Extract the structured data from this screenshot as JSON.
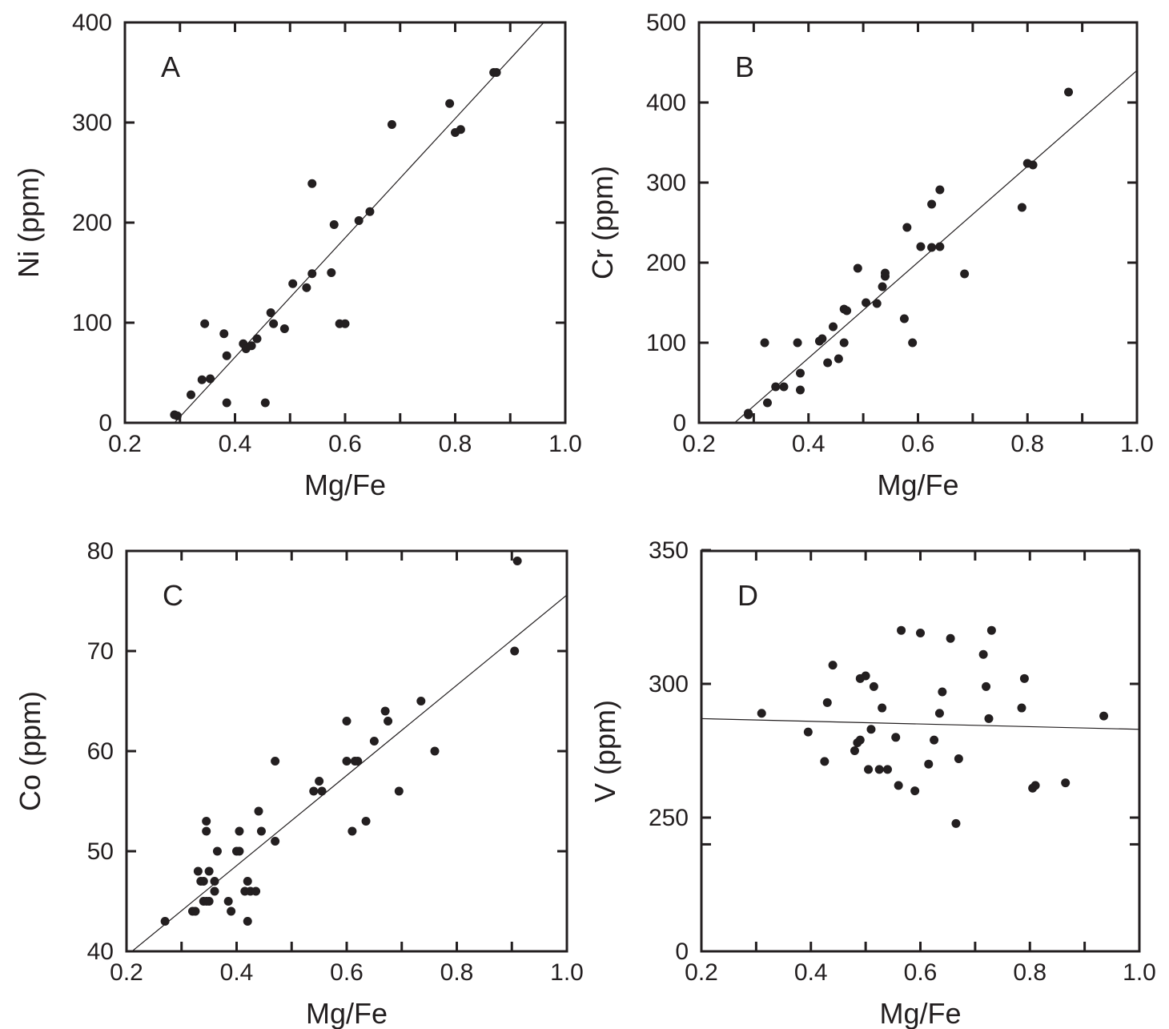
{
  "colors": {
    "ink": "#231f20",
    "background": "#ffffff"
  },
  "chart_data": [
    {
      "type": "scatter",
      "panel": "A",
      "xlabel": "Mg/Fe",
      "ylabel": "Ni (ppm)",
      "xlim": [
        0.2,
        1.0
      ],
      "ylim": [
        0,
        400
      ],
      "xticks": [
        "0.2",
        "0.4",
        "0.6",
        "0.8",
        "1.0"
      ],
      "yticks": [
        "0",
        "100",
        "200",
        "300",
        "400"
      ],
      "fit_line": [
        [
          0.29,
          0
        ],
        [
          0.8,
          304
        ]
      ],
      "points": [
        [
          0.29,
          8
        ],
        [
          0.295,
          7
        ],
        [
          0.32,
          28
        ],
        [
          0.34,
          43
        ],
        [
          0.345,
          99
        ],
        [
          0.355,
          44
        ],
        [
          0.38,
          89
        ],
        [
          0.385,
          20
        ],
        [
          0.385,
          67
        ],
        [
          0.415,
          79
        ],
        [
          0.42,
          74
        ],
        [
          0.43,
          77
        ],
        [
          0.44,
          84
        ],
        [
          0.455,
          20
        ],
        [
          0.465,
          110
        ],
        [
          0.47,
          99
        ],
        [
          0.49,
          94
        ],
        [
          0.505,
          139
        ],
        [
          0.53,
          135
        ],
        [
          0.54,
          149
        ],
        [
          0.54,
          239
        ],
        [
          0.575,
          150
        ],
        [
          0.58,
          198
        ],
        [
          0.59,
          99
        ],
        [
          0.6,
          99
        ],
        [
          0.625,
          202
        ],
        [
          0.645,
          211
        ],
        [
          0.685,
          298
        ],
        [
          0.79,
          319
        ],
        [
          0.8,
          290
        ],
        [
          0.81,
          293
        ],
        [
          0.87,
          350
        ],
        [
          0.875,
          350
        ]
      ]
    },
    {
      "type": "scatter",
      "panel": "B",
      "xlabel": "Mg/Fe",
      "ylabel": "Cr (ppm)",
      "xlim": [
        0.2,
        1.0
      ],
      "ylim": [
        0,
        500
      ],
      "xticks": [
        "0.2",
        "0.4",
        "0.6",
        "0.8",
        "1.0"
      ],
      "yticks": [
        "0",
        "100",
        "200",
        "300",
        "400",
        "500"
      ],
      "fit_line": [
        [
          0.265,
          0
        ],
        [
          1.0,
          440
        ]
      ],
      "points": [
        [
          0.29,
          12
        ],
        [
          0.29,
          10
        ],
        [
          0.32,
          100
        ],
        [
          0.325,
          25
        ],
        [
          0.34,
          45
        ],
        [
          0.355,
          45
        ],
        [
          0.38,
          100
        ],
        [
          0.385,
          41
        ],
        [
          0.385,
          62
        ],
        [
          0.42,
          102
        ],
        [
          0.425,
          105
        ],
        [
          0.435,
          75
        ],
        [
          0.445,
          120
        ],
        [
          0.455,
          80
        ],
        [
          0.465,
          100
        ],
        [
          0.465,
          142
        ],
        [
          0.47,
          140
        ],
        [
          0.49,
          193
        ],
        [
          0.505,
          150
        ],
        [
          0.525,
          149
        ],
        [
          0.535,
          170
        ],
        [
          0.54,
          183
        ],
        [
          0.54,
          187
        ],
        [
          0.575,
          130
        ],
        [
          0.58,
          244
        ],
        [
          0.59,
          100
        ],
        [
          0.605,
          220
        ],
        [
          0.625,
          219
        ],
        [
          0.625,
          273
        ],
        [
          0.64,
          220
        ],
        [
          0.64,
          291
        ],
        [
          0.685,
          186
        ],
        [
          0.79,
          269
        ],
        [
          0.8,
          324
        ],
        [
          0.81,
          322
        ],
        [
          0.875,
          413
        ]
      ]
    },
    {
      "type": "scatter",
      "panel": "C",
      "xlabel": "Mg/Fe",
      "ylabel": "Co (ppm)",
      "xlim": [
        0.2,
        1.0
      ],
      "ylim": [
        40,
        80
      ],
      "xticks": [
        "0.2",
        "0.4",
        "0.6",
        "0.8",
        "1.0"
      ],
      "yticks": [
        "40",
        "50",
        "60",
        "70",
        "80"
      ],
      "fit_line": [
        [
          0.21,
          40
        ],
        [
          1.0,
          75.6
        ]
      ],
      "points": [
        [
          0.27,
          43
        ],
        [
          0.32,
          44
        ],
        [
          0.325,
          44
        ],
        [
          0.33,
          48
        ],
        [
          0.335,
          47
        ],
        [
          0.34,
          47
        ],
        [
          0.34,
          45
        ],
        [
          0.345,
          53
        ],
        [
          0.345,
          52
        ],
        [
          0.345,
          45
        ],
        [
          0.35,
          48
        ],
        [
          0.35,
          45
        ],
        [
          0.36,
          47
        ],
        [
          0.36,
          46
        ],
        [
          0.365,
          50
        ],
        [
          0.385,
          45
        ],
        [
          0.39,
          44
        ],
        [
          0.4,
          50
        ],
        [
          0.405,
          52
        ],
        [
          0.405,
          50
        ],
        [
          0.415,
          46
        ],
        [
          0.42,
          43
        ],
        [
          0.42,
          47
        ],
        [
          0.425,
          46
        ],
        [
          0.435,
          46
        ],
        [
          0.44,
          54
        ],
        [
          0.445,
          52
        ],
        [
          0.47,
          51
        ],
        [
          0.47,
          59
        ],
        [
          0.54,
          56
        ],
        [
          0.55,
          57
        ],
        [
          0.555,
          56
        ],
        [
          0.6,
          59
        ],
        [
          0.6,
          63
        ],
        [
          0.61,
          52
        ],
        [
          0.615,
          59
        ],
        [
          0.62,
          59
        ],
        [
          0.635,
          53
        ],
        [
          0.65,
          61
        ],
        [
          0.67,
          64
        ],
        [
          0.675,
          63
        ],
        [
          0.695,
          56
        ],
        [
          0.735,
          65
        ],
        [
          0.76,
          60
        ],
        [
          0.905,
          70
        ],
        [
          0.91,
          79
        ]
      ]
    },
    {
      "type": "scatter",
      "panel": "D",
      "xlabel": "Mg/Fe",
      "ylabel": "V (ppm)",
      "xlim": [
        0.2,
        1.0
      ],
      "ylim": [
        0,
        350
      ],
      "xticks": [
        "0.2",
        "0.4",
        "0.6",
        "0.8",
        "1.0"
      ],
      "yticks": [
        "0",
        "250",
        "300",
        "350"
      ],
      "y_axis_break_note": "unlabeled tick between 0 and 250",
      "fit_line": [
        [
          0.2,
          287
        ],
        [
          1.0,
          283
        ]
      ],
      "points": [
        [
          0.31,
          289
        ],
        [
          0.395,
          282
        ],
        [
          0.425,
          271
        ],
        [
          0.43,
          293
        ],
        [
          0.44,
          307
        ],
        [
          0.48,
          275
        ],
        [
          0.485,
          278
        ],
        [
          0.49,
          279
        ],
        [
          0.49,
          302
        ],
        [
          0.5,
          303
        ],
        [
          0.505,
          268
        ],
        [
          0.51,
          283
        ],
        [
          0.515,
          299
        ],
        [
          0.525,
          268
        ],
        [
          0.53,
          291
        ],
        [
          0.54,
          268
        ],
        [
          0.555,
          280
        ],
        [
          0.56,
          262
        ],
        [
          0.565,
          320
        ],
        [
          0.59,
          260
        ],
        [
          0.6,
          319
        ],
        [
          0.615,
          270
        ],
        [
          0.625,
          279
        ],
        [
          0.635,
          289
        ],
        [
          0.64,
          297
        ],
        [
          0.655,
          317
        ],
        [
          0.665,
          239
        ],
        [
          0.67,
          272
        ],
        [
          0.715,
          311
        ],
        [
          0.72,
          299
        ],
        [
          0.725,
          287
        ],
        [
          0.73,
          320
        ],
        [
          0.785,
          291
        ],
        [
          0.79,
          302
        ],
        [
          0.805,
          261
        ],
        [
          0.81,
          262
        ],
        [
          0.865,
          263
        ],
        [
          0.935,
          288
        ]
      ]
    }
  ]
}
